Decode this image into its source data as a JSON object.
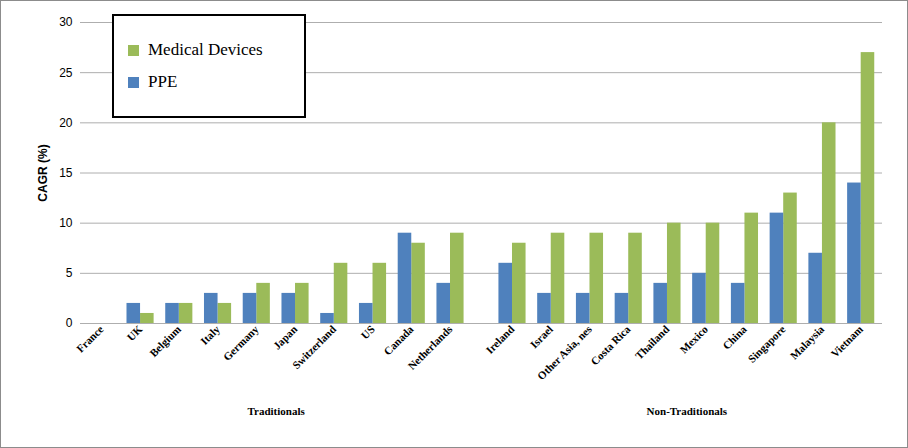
{
  "chart_data": {
    "type": "bar",
    "ylabel": "CAGR (%)",
    "categories": [
      "France",
      "UK",
      "Belgium",
      "Italy",
      "Germany",
      "Japan",
      "Switzerland",
      "US",
      "Canada",
      "Netherlands",
      "Ireland",
      "Israel",
      "Other Asia, nes",
      "Costa Rica",
      "Thailand",
      "Mexico",
      "China",
      "Singapore",
      "Malaysia",
      "Vietnam"
    ],
    "groups": [
      "Traditionals",
      "Traditionals",
      "Traditionals",
      "Traditionals",
      "Traditionals",
      "Traditionals",
      "Traditionals",
      "Traditionals",
      "Traditionals",
      "Traditionals",
      "Non-Traditionals",
      "Non-Traditionals",
      "Non-Traditionals",
      "Non-Traditionals",
      "Non-Traditionals",
      "Non-Traditionals",
      "Non-Traditionals",
      "Non-Traditionals",
      "Non-Traditionals",
      "Non-Traditionals"
    ],
    "series": [
      {
        "name": "Medical Devices",
        "color": "#9bbb59",
        "values": [
          0,
          1,
          2,
          2,
          4,
          4,
          6,
          6,
          8,
          9,
          8,
          9,
          9,
          9,
          10,
          10,
          11,
          13,
          20,
          27
        ]
      },
      {
        "name": "PPE",
        "color": "#4f81bd",
        "values": [
          0,
          2,
          2,
          3,
          3,
          3,
          1,
          2,
          9,
          4,
          6,
          3,
          3,
          3,
          4,
          5,
          4,
          11,
          7,
          14
        ]
      }
    ],
    "ylim": [
      0,
      30
    ],
    "yticks": [
      0,
      5,
      10,
      15,
      20,
      25,
      30
    ],
    "grid": true,
    "legend": "top-left"
  }
}
